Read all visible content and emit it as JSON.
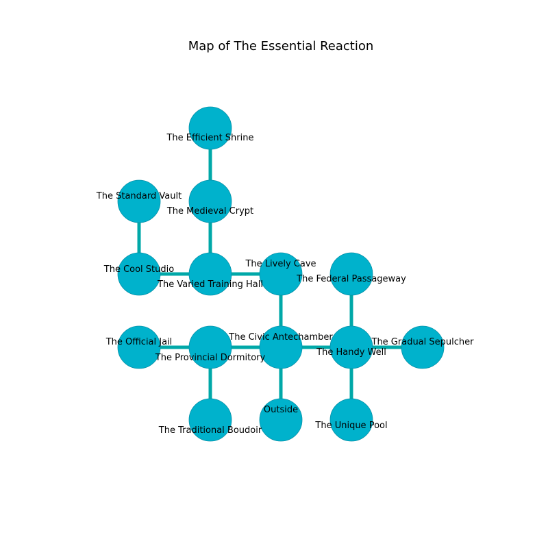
{
  "diagram": {
    "title": "Map of The Essential Reaction",
    "colors": {
      "node_fill": "#00b2cc",
      "node_stroke": "#0891a8",
      "edge": "#00a8a8"
    },
    "nodes": [
      {
        "id": "efficient-shrine",
        "label": "The Efficient Shrine"
      },
      {
        "id": "medieval-crypt",
        "label": "The Medieval Crypt"
      },
      {
        "id": "standard-vault",
        "label": "The Standard Vault"
      },
      {
        "id": "cool-studio",
        "label": "The Cool Studio"
      },
      {
        "id": "varied-training-hall",
        "label": "The Varied Training Hall"
      },
      {
        "id": "lively-cave",
        "label": "The Lively Cave"
      },
      {
        "id": "federal-passageway",
        "label": "The Federal Passageway"
      },
      {
        "id": "official-jail",
        "label": "The Official Jail"
      },
      {
        "id": "provincial-dormitory",
        "label": "The Provincial Dormitory"
      },
      {
        "id": "civic-antechamber",
        "label": "The Civic Antechamber"
      },
      {
        "id": "handy-well",
        "label": "The Handy Well"
      },
      {
        "id": "gradual-sepulcher",
        "label": "The Gradual Sepulcher"
      },
      {
        "id": "traditional-boudoir",
        "label": "The Traditional Boudoir"
      },
      {
        "id": "outside",
        "label": "Outside"
      },
      {
        "id": "unique-pool",
        "label": "The Unique Pool"
      }
    ],
    "edges": [
      {
        "from": "efficient-shrine",
        "to": "medieval-crypt"
      },
      {
        "from": "medieval-crypt",
        "to": "varied-training-hall"
      },
      {
        "from": "standard-vault",
        "to": "cool-studio"
      },
      {
        "from": "cool-studio",
        "to": "varied-training-hall"
      },
      {
        "from": "varied-training-hall",
        "to": "lively-cave"
      },
      {
        "from": "lively-cave",
        "to": "civic-antechamber"
      },
      {
        "from": "federal-passageway",
        "to": "handy-well"
      },
      {
        "from": "official-jail",
        "to": "provincial-dormitory"
      },
      {
        "from": "provincial-dormitory",
        "to": "civic-antechamber"
      },
      {
        "from": "civic-antechamber",
        "to": "handy-well"
      },
      {
        "from": "handy-well",
        "to": "gradual-sepulcher"
      },
      {
        "from": "provincial-dormitory",
        "to": "traditional-boudoir"
      },
      {
        "from": "civic-antechamber",
        "to": "outside"
      },
      {
        "from": "handy-well",
        "to": "unique-pool"
      }
    ]
  }
}
